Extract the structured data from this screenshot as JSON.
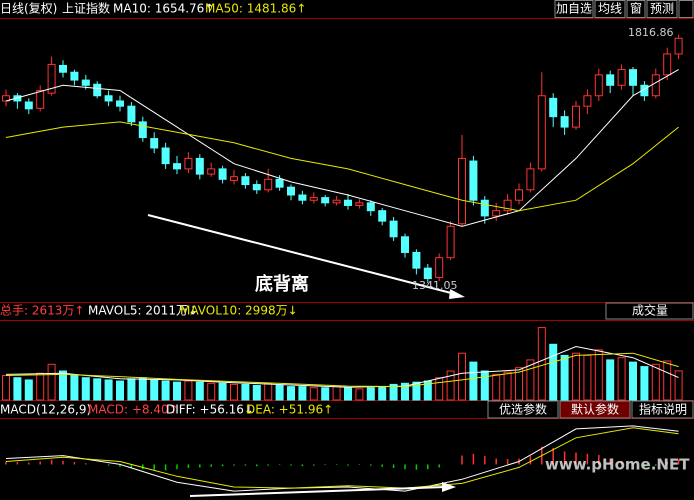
{
  "header": {
    "period": "日线(复权)",
    "name": "上证指数",
    "ma10": "MA10: 1654.76↑",
    "ma50": "MA50: 1481.86↑",
    "buttons": [
      "加自选",
      "均线",
      "窗",
      "预测"
    ]
  },
  "chart_data": [
    {
      "type": "candlestick",
      "ylim": [
        1309,
        1845
      ],
      "up_color": "#ff3232",
      "down_color": "#54ffff",
      "high_label": "1816.86",
      "low_label": "1341.05",
      "annotation": "底背离",
      "candles": [
        [
          1690,
          1700,
          1712,
          1680
        ],
        [
          1700,
          1690,
          1705,
          1675
        ],
        [
          1688,
          1675,
          1695,
          1665
        ],
        [
          1676,
          1710,
          1720,
          1670
        ],
        [
          1705,
          1760,
          1775,
          1700
        ],
        [
          1758,
          1745,
          1768,
          1735
        ],
        [
          1745,
          1730,
          1750,
          1720
        ],
        [
          1730,
          1720,
          1740,
          1712
        ],
        [
          1722,
          1700,
          1728,
          1695
        ],
        [
          1700,
          1690,
          1710,
          1680
        ],
        [
          1690,
          1680,
          1700,
          1670
        ],
        [
          1680,
          1650,
          1688,
          1642
        ],
        [
          1650,
          1620,
          1660,
          1612
        ],
        [
          1618,
          1600,
          1630,
          1590
        ],
        [
          1600,
          1570,
          1610,
          1560
        ],
        [
          1570,
          1560,
          1585,
          1550
        ],
        [
          1560,
          1580,
          1592,
          1552
        ],
        [
          1580,
          1550,
          1588,
          1540
        ],
        [
          1550,
          1560,
          1572,
          1545
        ],
        [
          1560,
          1540,
          1566,
          1532
        ],
        [
          1538,
          1545,
          1558,
          1530
        ],
        [
          1545,
          1530,
          1552,
          1522
        ],
        [
          1530,
          1520,
          1538,
          1512
        ],
        [
          1520,
          1540,
          1560,
          1515
        ],
        [
          1540,
          1525,
          1548,
          1518
        ],
        [
          1525,
          1510,
          1530,
          1500
        ],
        [
          1510,
          1500,
          1518,
          1492
        ],
        [
          1500,
          1505,
          1515,
          1494
        ],
        [
          1505,
          1495,
          1510,
          1488
        ],
        [
          1495,
          1500,
          1508,
          1490
        ],
        [
          1500,
          1490,
          1512,
          1482
        ],
        [
          1490,
          1495,
          1502,
          1484
        ],
        [
          1495,
          1480,
          1500,
          1470
        ],
        [
          1480,
          1460,
          1485,
          1452
        ],
        [
          1460,
          1430,
          1468,
          1422
        ],
        [
          1430,
          1400,
          1436,
          1390
        ],
        [
          1400,
          1370,
          1406,
          1358
        ],
        [
          1370,
          1350,
          1378,
          1341.05
        ],
        [
          1352,
          1390,
          1398,
          1345
        ],
        [
          1390,
          1450,
          1460,
          1385
        ],
        [
          1455,
          1580,
          1625,
          1450
        ],
        [
          1575,
          1500,
          1585,
          1490
        ],
        [
          1500,
          1470,
          1508,
          1455
        ],
        [
          1470,
          1480,
          1495,
          1460
        ],
        [
          1480,
          1500,
          1512,
          1472
        ],
        [
          1500,
          1520,
          1532,
          1492
        ],
        [
          1520,
          1560,
          1572,
          1515
        ],
        [
          1560,
          1700,
          1745,
          1555
        ],
        [
          1695,
          1660,
          1705,
          1640
        ],
        [
          1660,
          1640,
          1672,
          1625
        ],
        [
          1640,
          1680,
          1690,
          1635
        ],
        [
          1680,
          1700,
          1712,
          1665
        ],
        [
          1700,
          1740,
          1752,
          1690
        ],
        [
          1740,
          1720,
          1748,
          1705
        ],
        [
          1720,
          1750,
          1760,
          1712
        ],
        [
          1750,
          1720,
          1755,
          1700
        ],
        [
          1720,
          1700,
          1728,
          1690
        ],
        [
          1700,
          1740,
          1752,
          1695
        ],
        [
          1740,
          1780,
          1792,
          1730
        ],
        [
          1780,
          1810,
          1816.86,
          1770
        ]
      ],
      "lines": [
        {
          "color": "#ffffff",
          "x": [
            0,
            5,
            10,
            15,
            20,
            25,
            30,
            35,
            40,
            45,
            50,
            55,
            59
          ],
          "values": [
            1690,
            1720,
            1710,
            1640,
            1570,
            1535,
            1510,
            1480,
            1450,
            1480,
            1580,
            1700,
            1750
          ]
        },
        {
          "color": "#e8e800",
          "x": [
            0,
            5,
            10,
            15,
            20,
            25,
            30,
            35,
            40,
            45,
            50,
            55,
            59
          ],
          "values": [
            1620,
            1640,
            1650,
            1630,
            1610,
            1580,
            1560,
            1530,
            1500,
            1480,
            1500,
            1570,
            1640
          ]
        }
      ]
    },
    {
      "type": "bar",
      "ylim": [
        0,
        7000
      ],
      "total": "总手: 2613万↑",
      "mavol5": "MAVOL5: 2011万↓",
      "mavol10": "MAVOL10: 2998万↓",
      "selector": "成交量",
      "values": [
        2200,
        2000,
        1800,
        2400,
        3200,
        2600,
        2200,
        2000,
        1900,
        1800,
        1700,
        1900,
        2000,
        1800,
        1700,
        1600,
        1700,
        1600,
        1500,
        1500,
        1400,
        1400,
        1300,
        1500,
        1300,
        1200,
        1200,
        1100,
        1100,
        1200,
        1100,
        1000,
        1100,
        1200,
        1400,
        1500,
        1600,
        1700,
        2000,
        2600,
        4200,
        3400,
        2600,
        2300,
        2500,
        2900,
        3600,
        6500,
        5000,
        4000,
        4200,
        4000,
        4500,
        3600,
        3800,
        3400,
        3000,
        3200,
        3500,
        2613
      ],
      "lines": [
        {
          "color": "#ffffff",
          "x": [
            0,
            5,
            10,
            15,
            20,
            25,
            30,
            35,
            40,
            45,
            50,
            55,
            59
          ],
          "values": [
            2300,
            2400,
            1900,
            1800,
            1550,
            1350,
            1150,
            1250,
            2400,
            2700,
            4800,
            3800,
            2011
          ]
        },
        {
          "color": "#e8e800",
          "x": [
            0,
            5,
            10,
            15,
            20,
            25,
            30,
            35,
            40,
            45,
            50,
            55,
            59
          ],
          "values": [
            2200,
            2300,
            2100,
            1850,
            1650,
            1450,
            1250,
            1200,
            1800,
            2500,
            4000,
            4200,
            2998
          ]
        }
      ]
    },
    {
      "type": "macd",
      "ylim": [
        -60,
        75
      ],
      "title": "MACD(12,26,9)",
      "macd": "MACD: +8.40↑",
      "diff": "DIFF: +56.16↓",
      "dea": "DEA: +51.96↑",
      "buttons": [
        "优选参数",
        "默认参数",
        "指标说明"
      ],
      "values": [
        5,
        4,
        3,
        5,
        8,
        6,
        4,
        2,
        0,
        -2,
        -4,
        -6,
        -8,
        -9,
        -10,
        -8,
        -6,
        -5,
        -4,
        -3,
        -2,
        -2,
        -3,
        -2,
        -1,
        -2,
        -3,
        -2,
        -1,
        -1,
        -2,
        -1,
        -2,
        -4,
        -6,
        -8,
        -9,
        -8,
        -5,
        0,
        15,
        18,
        14,
        10,
        9,
        10,
        14,
        30,
        28,
        22,
        20,
        18,
        16,
        10,
        6,
        2,
        -4,
        -2,
        4,
        8.4
      ],
      "lines": [
        {
          "color": "#ffffff",
          "x": [
            0,
            5,
            10,
            15,
            20,
            25,
            30,
            35,
            40,
            45,
            50,
            55,
            59
          ],
          "values": [
            10,
            15,
            0,
            -30,
            -45,
            -40,
            -38,
            -45,
            -25,
            5,
            60,
            65,
            56.16
          ]
        },
        {
          "color": "#e8e800",
          "x": [
            0,
            5,
            10,
            15,
            20,
            25,
            30,
            35,
            40,
            45,
            50,
            55,
            59
          ],
          "values": [
            5,
            12,
            5,
            -20,
            -38,
            -40,
            -36,
            -40,
            -32,
            -5,
            45,
            62,
            51.96
          ]
        }
      ]
    }
  ],
  "watermark": "www.pHome.NET"
}
